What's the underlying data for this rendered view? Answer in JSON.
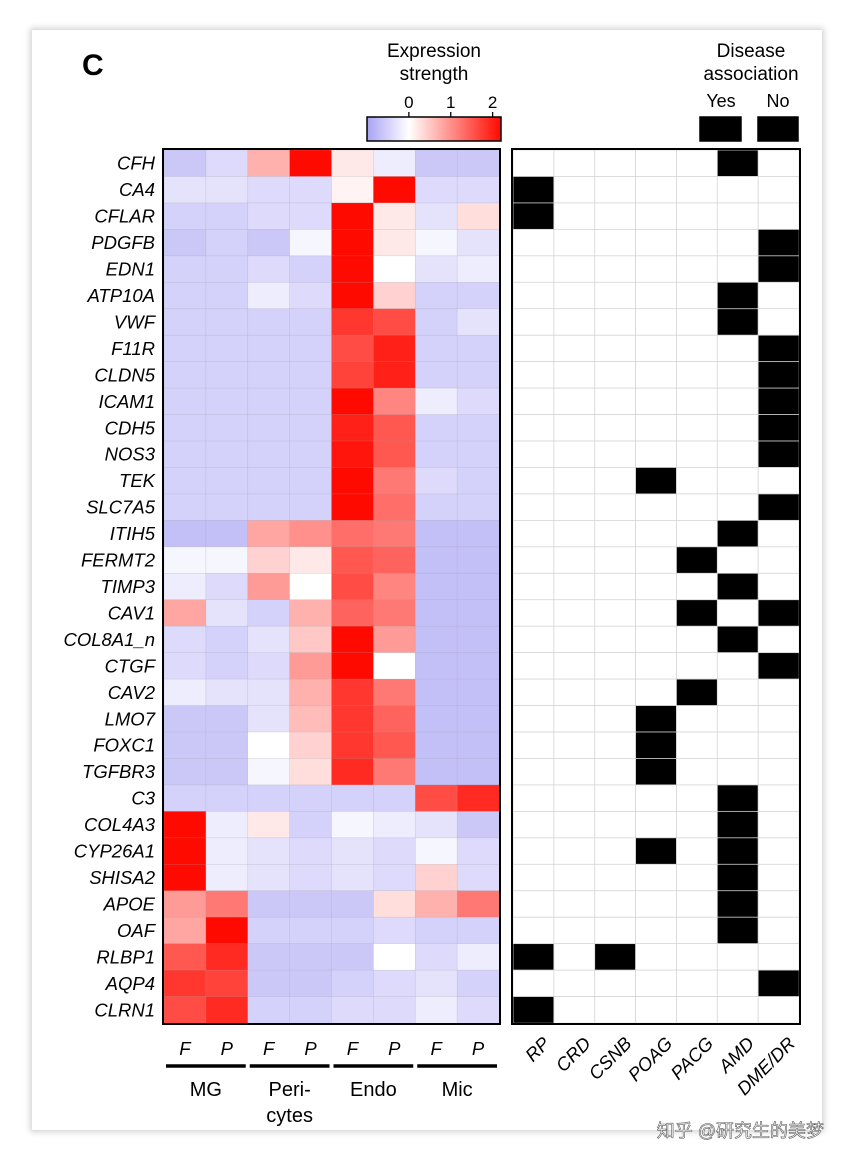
{
  "panel_label": "C",
  "watermark": "知乎 @研究生的美梦",
  "chart_data": [
    {
      "type": "heatmap",
      "title": "",
      "legend": {
        "title_line1": "Expression",
        "title_line2": "strength",
        "ticks": [
          "0",
          "1",
          "2"
        ],
        "tick_values": [
          0,
          1,
          2
        ],
        "range": [
          -1,
          2.2
        ],
        "colors": {
          "low": "#a9a3f4",
          "mid": "#ffffff",
          "high": "#ff0a00"
        }
      },
      "genes": [
        "CFH",
        "CA4",
        "CFLAR",
        "PDGFB",
        "EDN1",
        "ATP10A",
        "VWF",
        "F11R",
        "CLDN5",
        "ICAM1",
        "CDH5",
        "NOS3",
        "TEK",
        "SLC7A5",
        "ITIH5",
        "FERMT2",
        "TIMP3",
        "CAV1",
        "COL8A1_n",
        "CTGF",
        "CAV2",
        "LMO7",
        "FOXC1",
        "TGFBR3",
        "C3",
        "COL4A3",
        "CYP26A1",
        "SHISA2",
        "APOE",
        "OAF",
        "RLBP1",
        "AQP4",
        "CLRN1"
      ],
      "columns": [
        "F",
        "P",
        "F",
        "P",
        "F",
        "P",
        "F",
        "P"
      ],
      "groups": [
        {
          "name": "MG",
          "line2": ""
        },
        {
          "name": "Peri-",
          "line2": "cytes"
        },
        {
          "name": "Endo",
          "line2": ""
        },
        {
          "name": "Mic",
          "line2": ""
        }
      ],
      "values": [
        [
          -0.6,
          -0.4,
          0.7,
          2.2,
          0.2,
          -0.2,
          -0.6,
          -0.6
        ],
        [
          -0.3,
          -0.3,
          -0.4,
          -0.4,
          0.1,
          2.2,
          -0.4,
          -0.4
        ],
        [
          -0.5,
          -0.5,
          -0.4,
          -0.4,
          2.2,
          0.2,
          -0.3,
          0.3
        ],
        [
          -0.6,
          -0.5,
          -0.6,
          -0.1,
          2.2,
          0.2,
          -0.1,
          -0.3
        ],
        [
          -0.5,
          -0.5,
          -0.4,
          -0.5,
          2.2,
          0.0,
          -0.3,
          -0.2
        ],
        [
          -0.5,
          -0.5,
          -0.2,
          -0.4,
          2.2,
          0.4,
          -0.5,
          -0.5
        ],
        [
          -0.5,
          -0.5,
          -0.5,
          -0.5,
          1.8,
          1.6,
          -0.5,
          -0.3
        ],
        [
          -0.5,
          -0.5,
          -0.5,
          -0.5,
          1.6,
          2.0,
          -0.5,
          -0.5
        ],
        [
          -0.5,
          -0.5,
          -0.5,
          -0.5,
          1.7,
          2.0,
          -0.5,
          -0.5
        ],
        [
          -0.5,
          -0.5,
          -0.5,
          -0.5,
          2.2,
          1.1,
          -0.2,
          -0.4
        ],
        [
          -0.5,
          -0.5,
          -0.5,
          -0.5,
          2.0,
          1.5,
          -0.5,
          -0.5
        ],
        [
          -0.5,
          -0.5,
          -0.5,
          -0.5,
          2.1,
          1.5,
          -0.5,
          -0.5
        ],
        [
          -0.5,
          -0.5,
          -0.5,
          -0.5,
          2.2,
          1.2,
          -0.4,
          -0.5
        ],
        [
          -0.5,
          -0.5,
          -0.5,
          -0.5,
          2.2,
          1.3,
          -0.5,
          -0.5
        ],
        [
          -0.7,
          -0.7,
          0.8,
          1.0,
          1.3,
          1.2,
          -0.7,
          -0.7
        ],
        [
          -0.1,
          -0.1,
          0.4,
          0.2,
          1.5,
          1.4,
          -0.7,
          -0.7
        ],
        [
          -0.2,
          -0.4,
          0.9,
          0.0,
          1.6,
          1.1,
          -0.7,
          -0.7
        ],
        [
          0.8,
          -0.3,
          -0.5,
          0.7,
          1.4,
          1.2,
          -0.7,
          -0.7
        ],
        [
          -0.4,
          -0.5,
          -0.3,
          0.5,
          2.2,
          0.9,
          -0.7,
          -0.7
        ],
        [
          -0.4,
          -0.5,
          -0.4,
          0.9,
          2.2,
          0.0,
          -0.7,
          -0.7
        ],
        [
          -0.2,
          -0.3,
          -0.3,
          0.7,
          1.8,
          1.2,
          -0.7,
          -0.7
        ],
        [
          -0.6,
          -0.6,
          -0.3,
          0.6,
          1.8,
          1.4,
          -0.7,
          -0.7
        ],
        [
          -0.6,
          -0.6,
          0.0,
          0.4,
          1.8,
          1.5,
          -0.7,
          -0.7
        ],
        [
          -0.6,
          -0.6,
          -0.1,
          0.3,
          1.9,
          1.2,
          -0.7,
          -0.7
        ],
        [
          -0.5,
          -0.5,
          -0.5,
          -0.5,
          -0.5,
          -0.5,
          1.6,
          1.9
        ],
        [
          2.2,
          -0.2,
          0.2,
          -0.5,
          -0.1,
          -0.2,
          -0.3,
          -0.6
        ],
        [
          2.2,
          -0.2,
          -0.3,
          -0.4,
          -0.3,
          -0.4,
          -0.1,
          -0.4
        ],
        [
          2.2,
          -0.2,
          -0.3,
          -0.4,
          -0.3,
          -0.4,
          0.4,
          -0.4
        ],
        [
          0.9,
          1.2,
          -0.6,
          -0.6,
          -0.6,
          0.3,
          0.7,
          1.2
        ],
        [
          0.8,
          2.2,
          -0.5,
          -0.5,
          -0.5,
          -0.4,
          -0.5,
          -0.5
        ],
        [
          1.5,
          1.9,
          -0.6,
          -0.6,
          -0.6,
          0.0,
          -0.4,
          -0.2
        ],
        [
          1.8,
          1.7,
          -0.6,
          -0.6,
          -0.5,
          -0.4,
          -0.3,
          -0.5
        ],
        [
          1.6,
          1.9,
          -0.5,
          -0.5,
          -0.4,
          -0.4,
          -0.2,
          -0.4
        ]
      ]
    },
    {
      "type": "table",
      "title_line1": "Disease",
      "title_line2": "association",
      "legend": [
        {
          "label": "Yes",
          "color": "#000000"
        },
        {
          "label": "No",
          "color": "#ffffff"
        }
      ],
      "diseases": [
        "RP",
        "CRD",
        "CSNB",
        "POAG",
        "PACG",
        "AMD",
        "DME/DR"
      ],
      "association": [
        [
          0,
          0,
          0,
          0,
          0,
          1,
          0
        ],
        [
          1,
          0,
          0,
          0,
          0,
          0,
          0
        ],
        [
          1,
          0,
          0,
          0,
          0,
          0,
          0
        ],
        [
          0,
          0,
          0,
          0,
          0,
          0,
          1
        ],
        [
          0,
          0,
          0,
          0,
          0,
          0,
          1
        ],
        [
          0,
          0,
          0,
          0,
          0,
          1,
          0
        ],
        [
          0,
          0,
          0,
          0,
          0,
          1,
          0
        ],
        [
          0,
          0,
          0,
          0,
          0,
          0,
          1
        ],
        [
          0,
          0,
          0,
          0,
          0,
          0,
          1
        ],
        [
          0,
          0,
          0,
          0,
          0,
          0,
          1
        ],
        [
          0,
          0,
          0,
          0,
          0,
          0,
          1
        ],
        [
          0,
          0,
          0,
          0,
          0,
          0,
          1
        ],
        [
          0,
          0,
          0,
          1,
          0,
          0,
          0
        ],
        [
          0,
          0,
          0,
          0,
          0,
          0,
          1
        ],
        [
          0,
          0,
          0,
          0,
          0,
          1,
          0
        ],
        [
          0,
          0,
          0,
          0,
          1,
          0,
          0
        ],
        [
          0,
          0,
          0,
          0,
          0,
          1,
          0
        ],
        [
          0,
          0,
          0,
          0,
          1,
          0,
          1
        ],
        [
          0,
          0,
          0,
          0,
          0,
          1,
          0
        ],
        [
          0,
          0,
          0,
          0,
          0,
          0,
          1
        ],
        [
          0,
          0,
          0,
          0,
          1,
          0,
          0
        ],
        [
          0,
          0,
          0,
          1,
          0,
          0,
          0
        ],
        [
          0,
          0,
          0,
          1,
          0,
          0,
          0
        ],
        [
          0,
          0,
          0,
          1,
          0,
          0,
          0
        ],
        [
          0,
          0,
          0,
          0,
          0,
          1,
          0
        ],
        [
          0,
          0,
          0,
          0,
          0,
          1,
          0
        ],
        [
          0,
          0,
          0,
          1,
          0,
          1,
          0
        ],
        [
          0,
          0,
          0,
          0,
          0,
          1,
          0
        ],
        [
          0,
          0,
          0,
          0,
          0,
          1,
          0
        ],
        [
          0,
          0,
          0,
          0,
          0,
          1,
          0
        ],
        [
          1,
          0,
          1,
          0,
          0,
          0,
          0
        ],
        [
          0,
          0,
          0,
          0,
          0,
          0,
          1
        ],
        [
          1,
          0,
          0,
          0,
          0,
          0,
          0
        ]
      ]
    }
  ]
}
